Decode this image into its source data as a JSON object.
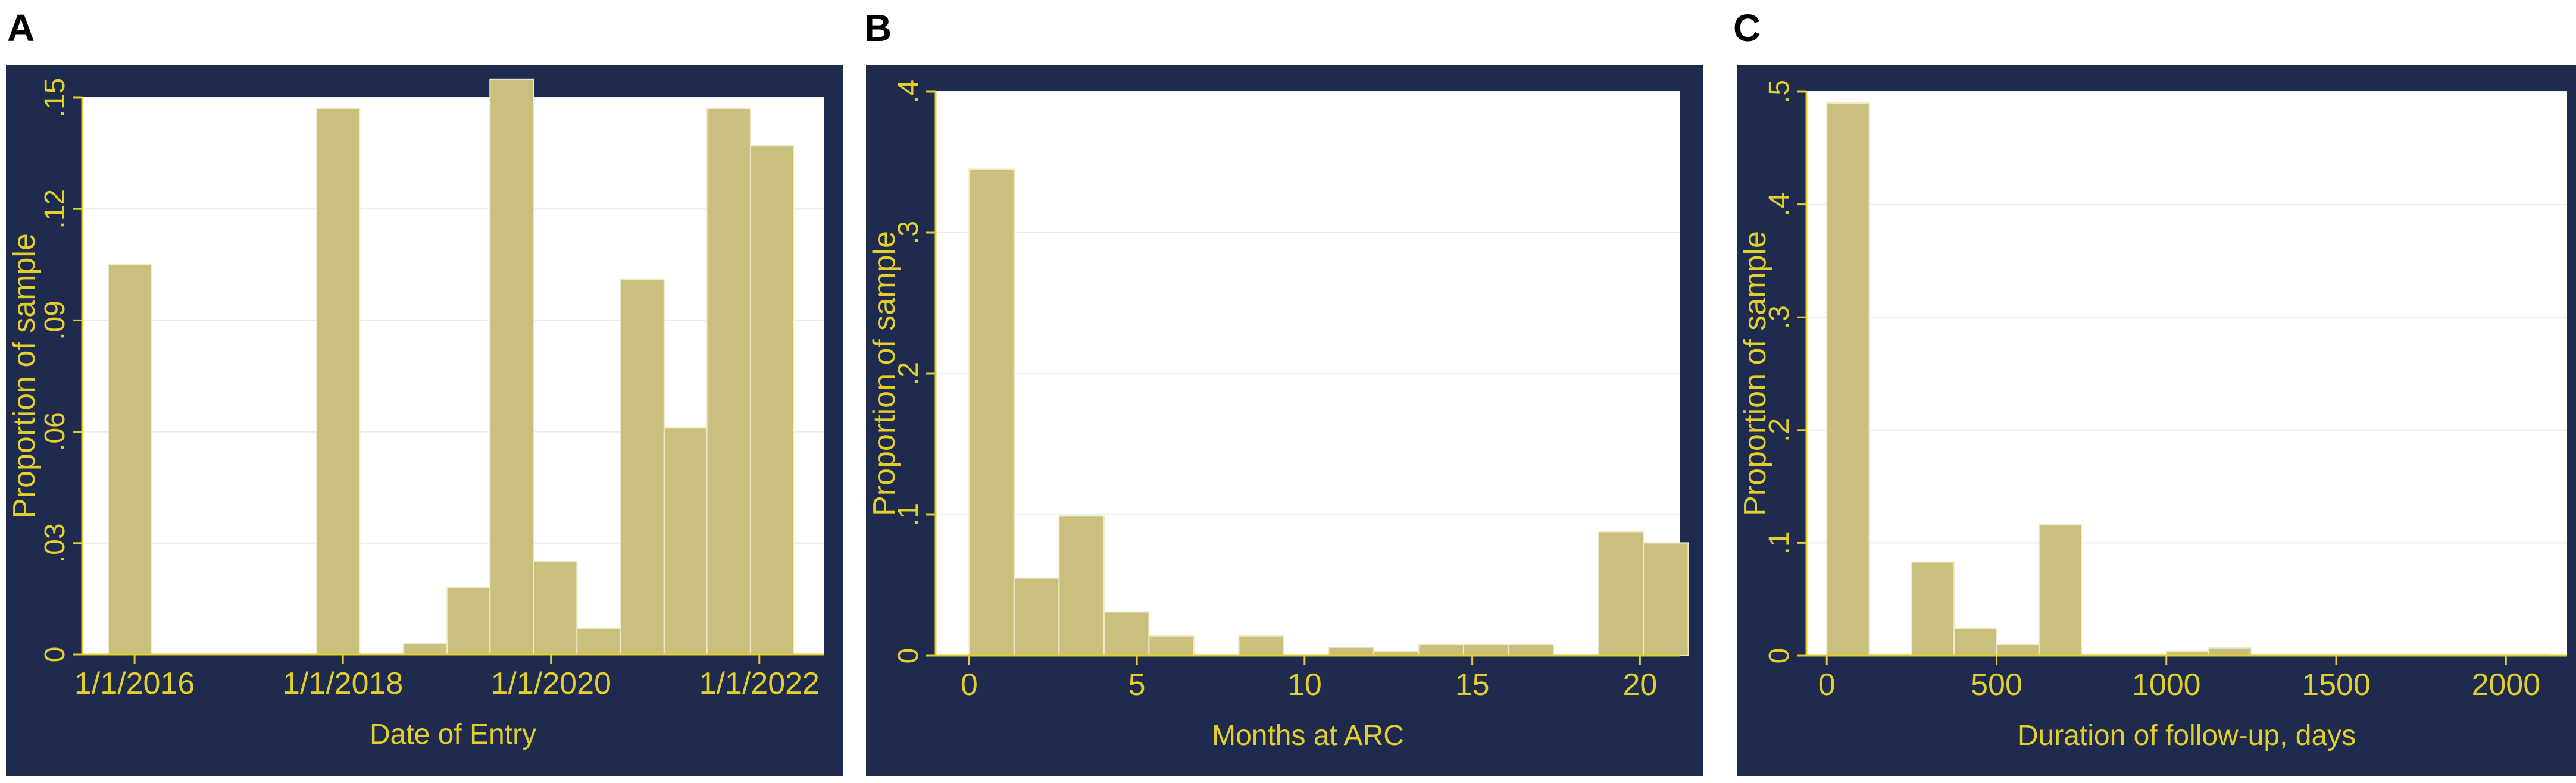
{
  "colors": {
    "outer_bg": "#1f2a4f",
    "plot_bg": "#ffffff",
    "bar_fill": "#c9c07e",
    "bar_edge": "#eeeac8",
    "text": "#e3cf2c",
    "grid": "#ececec"
  },
  "chart_data": [
    {
      "panel_label": "A",
      "type": "bar",
      "xlabel": "Date of Entry",
      "ylabel": "Proportion of sample",
      "x_unit": "date",
      "x_ticks": [
        "1/1/2016",
        "1/1/2018",
        "1/1/2020",
        "1/1/2022"
      ],
      "ylim": [
        0,
        0.15
      ],
      "y_ticks": [
        0,
        0.03,
        0.06,
        0.09,
        0.12,
        0.15
      ],
      "y_tick_labels": [
        "0",
        ".03",
        ".06",
        ".09",
        ".12",
        ".15"
      ],
      "y_labels_rotated": true,
      "grid": true,
      "bars": [
        {
          "start": "2015-10-01",
          "end": "2016-03-01",
          "value": 0.105
        },
        {
          "start": "2017-10-01",
          "end": "2018-03-01",
          "value": 0.147
        },
        {
          "start": "2018-08-01",
          "end": "2019-01-01",
          "value": 0.003
        },
        {
          "start": "2019-01-01",
          "end": "2019-06-01",
          "value": 0.018
        },
        {
          "start": "2019-06-01",
          "end": "2019-11-01",
          "value": 0.155
        },
        {
          "start": "2019-11-01",
          "end": "2020-04-01",
          "value": 0.025
        },
        {
          "start": "2020-04-01",
          "end": "2020-09-01",
          "value": 0.007
        },
        {
          "start": "2020-09-01",
          "end": "2021-02-01",
          "value": 0.101
        },
        {
          "start": "2021-02-01",
          "end": "2021-07-01",
          "value": 0.061
        },
        {
          "start": "2021-07-01",
          "end": "2021-12-01",
          "value": 0.147
        },
        {
          "start": "2021-12-01",
          "end": "2022-05-01",
          "value": 0.137
        }
      ]
    },
    {
      "panel_label": "B",
      "type": "bar",
      "xlabel": "Months at ARC",
      "ylabel": "Proportion of sample",
      "xlim": [
        -1,
        21.2
      ],
      "x_ticks": [
        0,
        5,
        10,
        15,
        20
      ],
      "x_tick_labels": [
        "0",
        "5",
        "10",
        "15",
        "20"
      ],
      "ylim": [
        0,
        0.4
      ],
      "y_ticks": [
        0,
        0.1,
        0.2,
        0.3,
        0.4
      ],
      "y_tick_labels": [
        "0",
        ".1",
        ".2",
        ".3",
        ".4"
      ],
      "y_labels_rotated": true,
      "grid": true,
      "bin_width": 1.34,
      "bins": [
        {
          "x0": 0,
          "value": 0.345
        },
        {
          "x0": 1.34,
          "value": 0.055
        },
        {
          "x0": 2.68,
          "value": 0.099
        },
        {
          "x0": 4.02,
          "value": 0.031
        },
        {
          "x0": 5.36,
          "value": 0.014
        },
        {
          "x0": 8.04,
          "value": 0.014
        },
        {
          "x0": 10.72,
          "value": 0.006
        },
        {
          "x0": 12.06,
          "value": 0.003
        },
        {
          "x0": 13.4,
          "value": 0.008
        },
        {
          "x0": 14.74,
          "value": 0.008
        },
        {
          "x0": 16.08,
          "value": 0.008
        },
        {
          "x0": 18.76,
          "value": 0.088
        },
        {
          "x0": 20.1,
          "value": 0.08
        }
      ]
    },
    {
      "panel_label": "C",
      "type": "bar",
      "xlabel": "Duration of follow-up, days",
      "ylabel": "Proportion of sample",
      "xlim": [
        -60,
        2180
      ],
      "x_ticks": [
        0,
        500,
        1000,
        1500,
        2000
      ],
      "x_tick_labels": [
        "0",
        "500",
        "1000",
        "1500",
        "2000"
      ],
      "ylim": [
        0,
        0.5
      ],
      "y_ticks": [
        0,
        0.1,
        0.2,
        0.3,
        0.4,
        0.5
      ],
      "y_tick_labels": [
        "0",
        ".1",
        ".2",
        ".3",
        ".4",
        ".5"
      ],
      "y_labels_rotated": true,
      "grid": true,
      "bin_width": 125,
      "bins": [
        {
          "x0": 0,
          "value": 0.49
        },
        {
          "x0": 125,
          "value": 0.001
        },
        {
          "x0": 250,
          "value": 0.083
        },
        {
          "x0": 375,
          "value": 0.024
        },
        {
          "x0": 500,
          "value": 0.01
        },
        {
          "x0": 625,
          "value": 0.116
        },
        {
          "x0": 750,
          "value": 0.001
        },
        {
          "x0": 875,
          "value": 0.001
        },
        {
          "x0": 1000,
          "value": 0.004
        },
        {
          "x0": 1125,
          "value": 0.007
        },
        {
          "x0": 1250,
          "value": 0.001
        },
        {
          "x0": 1375,
          "value": 0.001
        },
        {
          "x0": 1500,
          "value": 0.001
        },
        {
          "x0": 1625,
          "value": 0.001
        },
        {
          "x0": 1750,
          "value": 0.001
        },
        {
          "x0": 1875,
          "value": 0.001
        },
        {
          "x0": 2000,
          "value": 0.001
        }
      ]
    }
  ]
}
